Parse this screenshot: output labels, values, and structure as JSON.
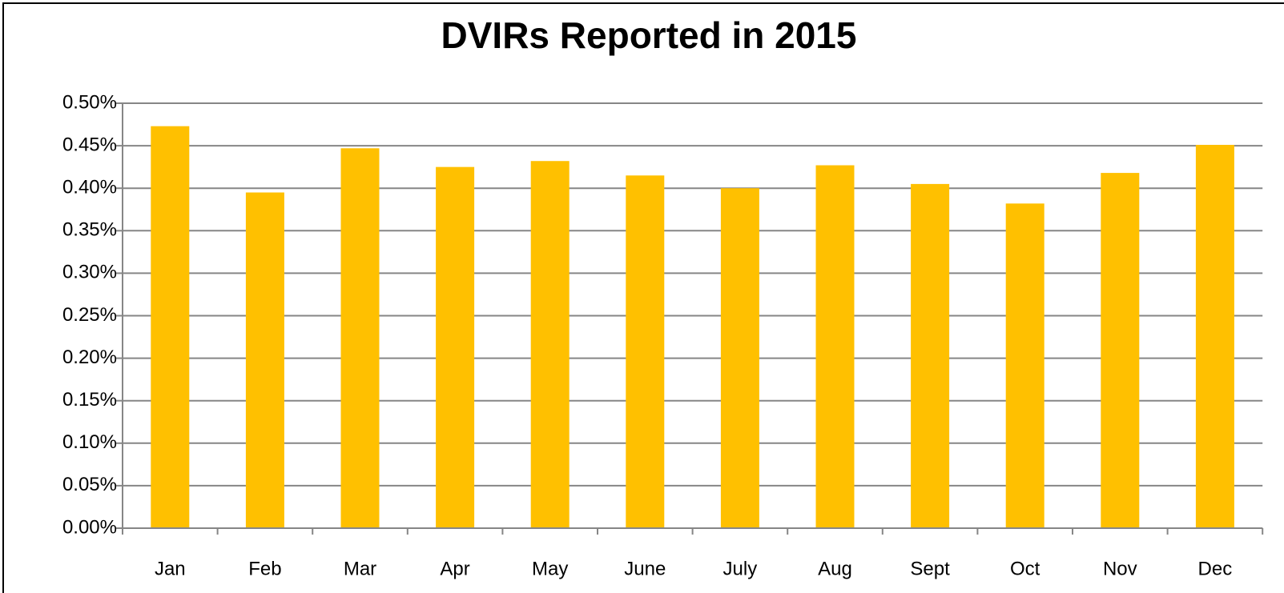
{
  "chart_data": {
    "type": "bar",
    "title": "DVIRs Reported in 2015",
    "categories": [
      "Jan",
      "Feb",
      "Mar",
      "Apr",
      "May",
      "June",
      "July",
      "Aug",
      "Sept",
      "Oct",
      "Nov",
      "Dec"
    ],
    "values": [
      0.473,
      0.395,
      0.447,
      0.425,
      0.432,
      0.415,
      0.4,
      0.427,
      0.405,
      0.382,
      0.418,
      0.451
    ],
    "color": "#ffc000",
    "ylim": [
      0,
      0.5
    ],
    "yticks": [
      {
        "value": 0,
        "label": "0.00%"
      },
      {
        "value": 0.05,
        "label": "0.05%"
      },
      {
        "value": 0.1,
        "label": "0.10%"
      },
      {
        "value": 0.15,
        "label": "0.15%"
      },
      {
        "value": 0.2,
        "label": "0.20%"
      },
      {
        "value": 0.25,
        "label": "0.25%"
      },
      {
        "value": 0.3,
        "label": "0.30%"
      },
      {
        "value": 0.35,
        "label": "0.35%"
      },
      {
        "value": 0.4,
        "label": "0.40%"
      },
      {
        "value": 0.45,
        "label": "0.45%"
      },
      {
        "value": 0.5,
        "label": "0.50%"
      }
    ],
    "grid": true
  }
}
